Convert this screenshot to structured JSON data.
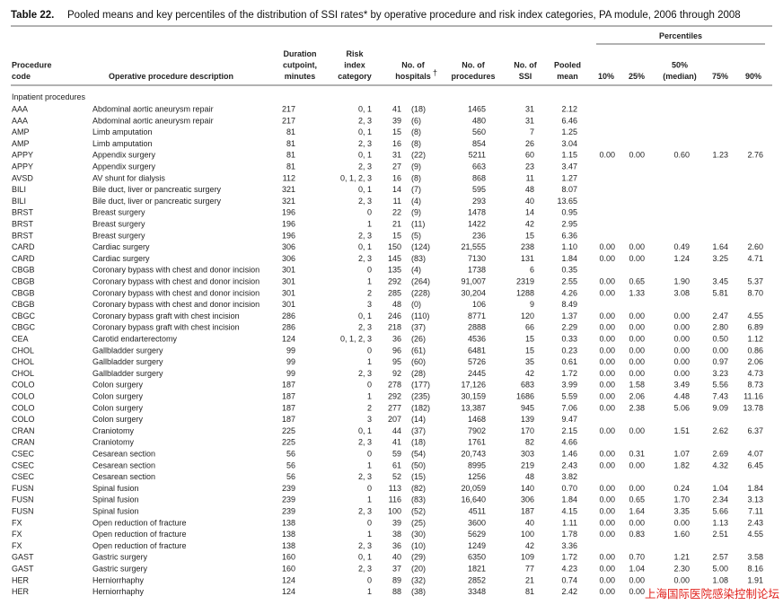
{
  "header": {
    "title_label": "Table 22.",
    "title": "Pooled means and key percentiles of the distribution of SSI rates* by operative procedure and risk index categories, PA module, 2006 through 2008"
  },
  "table": {
    "percentiles_label": "Percentiles",
    "columns": [
      {
        "lines": [
          "Procedure",
          "code"
        ]
      },
      {
        "lines": [
          "Operative procedure description"
        ]
      },
      {
        "lines": [
          "Duration",
          "cutpoint,",
          "minutes"
        ]
      },
      {
        "lines": [
          "Risk",
          "index",
          "category"
        ]
      },
      {
        "lines": [
          "No. of",
          "hospitals"
        ],
        "note_mark": "†"
      },
      {
        "lines": [
          "No. of",
          "procedures"
        ]
      },
      {
        "lines": [
          "No. of",
          "SSI"
        ]
      },
      {
        "lines": [
          "Pooled",
          "mean"
        ]
      },
      {
        "lines": [
          "10%"
        ]
      },
      {
        "lines": [
          "25%"
        ]
      },
      {
        "lines": [
          "50%",
          "(median)"
        ]
      },
      {
        "lines": [
          "75%"
        ]
      },
      {
        "lines": [
          "90%"
        ]
      }
    ],
    "section": "Inpatient procedures",
    "rows": [
      [
        "AAA",
        "Abdominal aortic aneurysm repair",
        "217",
        "0, 1",
        "41",
        "(18)",
        "1465",
        "31",
        "2.12"
      ],
      [
        "AAA",
        "Abdominal aortic aneurysm repair",
        "217",
        "2, 3",
        "39",
        "(6)",
        "480",
        "31",
        "6.46"
      ],
      [
        "AMP",
        "Limb amputation",
        "81",
        "0, 1",
        "15",
        "(8)",
        "560",
        "7",
        "1.25"
      ],
      [
        "AMP",
        "Limb amputation",
        "81",
        "2, 3",
        "16",
        "(8)",
        "854",
        "26",
        "3.04"
      ],
      [
        "APPY",
        "Appendix surgery",
        "81",
        "0, 1",
        "31",
        "(22)",
        "5211",
        "60",
        "1.15",
        "0.00",
        "0.00",
        "0.60",
        "1.23",
        "2.76"
      ],
      [
        "APPY",
        "Appendix surgery",
        "81",
        "2, 3",
        "27",
        "(9)",
        "663",
        "23",
        "3.47"
      ],
      [
        "AVSD",
        "AV shunt for dialysis",
        "112",
        "0, 1, 2, 3",
        "16",
        "(8)",
        "868",
        "11",
        "1.27"
      ],
      [
        "BILI",
        "Bile duct, liver or pancreatic surgery",
        "321",
        "0, 1",
        "14",
        "(7)",
        "595",
        "48",
        "8.07"
      ],
      [
        "BILI",
        "Bile duct, liver or pancreatic surgery",
        "321",
        "2, 3",
        "11",
        "(4)",
        "293",
        "40",
        "13.65"
      ],
      [
        "BRST",
        "Breast surgery",
        "196",
        "0",
        "22",
        "(9)",
        "1478",
        "14",
        "0.95"
      ],
      [
        "BRST",
        "Breast surgery",
        "196",
        "1",
        "21",
        "(11)",
        "1422",
        "42",
        "2.95"
      ],
      [
        "BRST",
        "Breast surgery",
        "196",
        "2, 3",
        "15",
        "(5)",
        "236",
        "15",
        "6.36"
      ],
      [
        "CARD",
        "Cardiac surgery",
        "306",
        "0, 1",
        "150",
        "(124)",
        "21,555",
        "238",
        "1.10",
        "0.00",
        "0.00",
        "0.49",
        "1.64",
        "2.60"
      ],
      [
        "CARD",
        "Cardiac surgery",
        "306",
        "2, 3",
        "145",
        "(83)",
        "7130",
        "131",
        "1.84",
        "0.00",
        "0.00",
        "1.24",
        "3.25",
        "4.71"
      ],
      [
        "CBGB",
        "Coronary bypass with chest and donor incision",
        "301",
        "0",
        "135",
        "(4)",
        "1738",
        "6",
        "0.35"
      ],
      [
        "CBGB",
        "Coronary bypass with chest and donor incision",
        "301",
        "1",
        "292",
        "(264)",
        "91,007",
        "2319",
        "2.55",
        "0.00",
        "0.65",
        "1.90",
        "3.45",
        "5.37"
      ],
      [
        "CBGB",
        "Coronary bypass with chest and donor incision",
        "301",
        "2",
        "285",
        "(228)",
        "30,204",
        "1288",
        "4.26",
        "0.00",
        "1.33",
        "3.08",
        "5.81",
        "8.70"
      ],
      [
        "CBGB",
        "Coronary bypass with chest and donor incision",
        "301",
        "3",
        "48",
        "(0)",
        "106",
        "9",
        "8.49"
      ],
      [
        "CBGC",
        "Coronary bypass graft with chest incision",
        "286",
        "0, 1",
        "246",
        "(110)",
        "8771",
        "120",
        "1.37",
        "0.00",
        "0.00",
        "0.00",
        "2.47",
        "4.55"
      ],
      [
        "CBGC",
        "Coronary bypass graft with chest incision",
        "286",
        "2, 3",
        "218",
        "(37)",
        "2888",
        "66",
        "2.29",
        "0.00",
        "0.00",
        "0.00",
        "2.80",
        "6.89"
      ],
      [
        "CEA",
        "Carotid endarterectomy",
        "124",
        "0, 1, 2, 3",
        "36",
        "(26)",
        "4536",
        "15",
        "0.33",
        "0.00",
        "0.00",
        "0.00",
        "0.50",
        "1.12"
      ],
      [
        "CHOL",
        "Gallbladder surgery",
        "99",
        "0",
        "96",
        "(61)",
        "6481",
        "15",
        "0.23",
        "0.00",
        "0.00",
        "0.00",
        "0.00",
        "0.86"
      ],
      [
        "CHOL",
        "Gallbladder surgery",
        "99",
        "1",
        "95",
        "(60)",
        "5726",
        "35",
        "0.61",
        "0.00",
        "0.00",
        "0.00",
        "0.97",
        "2.06"
      ],
      [
        "CHOL",
        "Gallbladder surgery",
        "99",
        "2, 3",
        "92",
        "(28)",
        "2445",
        "42",
        "1.72",
        "0.00",
        "0.00",
        "0.00",
        "3.23",
        "4.73"
      ],
      [
        "COLO",
        "Colon surgery",
        "187",
        "0",
        "278",
        "(177)",
        "17,126",
        "683",
        "3.99",
        "0.00",
        "1.58",
        "3.49",
        "5.56",
        "8.73"
      ],
      [
        "COLO",
        "Colon surgery",
        "187",
        "1",
        "292",
        "(235)",
        "30,159",
        "1686",
        "5.59",
        "0.00",
        "2.06",
        "4.48",
        "7.43",
        "11.16"
      ],
      [
        "COLO",
        "Colon surgery",
        "187",
        "2",
        "277",
        "(182)",
        "13,387",
        "945",
        "7.06",
        "0.00",
        "2.38",
        "5.06",
        "9.09",
        "13.78"
      ],
      [
        "COLO",
        "Colon surgery",
        "187",
        "3",
        "207",
        "(14)",
        "1468",
        "139",
        "9.47"
      ],
      [
        "CRAN",
        "Craniotomy",
        "225",
        "0, 1",
        "44",
        "(37)",
        "7902",
        "170",
        "2.15",
        "0.00",
        "0.00",
        "1.51",
        "2.62",
        "6.37"
      ],
      [
        "CRAN",
        "Craniotomy",
        "225",
        "2, 3",
        "41",
        "(18)",
        "1761",
        "82",
        "4.66"
      ],
      [
        "CSEC",
        "Cesarean section",
        "56",
        "0",
        "59",
        "(54)",
        "20,743",
        "303",
        "1.46",
        "0.00",
        "0.31",
        "1.07",
        "2.69",
        "4.07"
      ],
      [
        "CSEC",
        "Cesarean section",
        "56",
        "1",
        "61",
        "(50)",
        "8995",
        "219",
        "2.43",
        "0.00",
        "0.00",
        "1.82",
        "4.32",
        "6.45"
      ],
      [
        "CSEC",
        "Cesarean section",
        "56",
        "2, 3",
        "52",
        "(15)",
        "1256",
        "48",
        "3.82"
      ],
      [
        "FUSN",
        "Spinal fusion",
        "239",
        "0",
        "113",
        "(82)",
        "20,059",
        "140",
        "0.70",
        "0.00",
        "0.00",
        "0.24",
        "1.04",
        "1.84"
      ],
      [
        "FUSN",
        "Spinal fusion",
        "239",
        "1",
        "116",
        "(83)",
        "16,640",
        "306",
        "1.84",
        "0.00",
        "0.65",
        "1.70",
        "2.34",
        "3.13"
      ],
      [
        "FUSN",
        "Spinal fusion",
        "239",
        "2, 3",
        "100",
        "(52)",
        "4511",
        "187",
        "4.15",
        "0.00",
        "1.64",
        "3.35",
        "5.66",
        "7.11"
      ],
      [
        "FX",
        "Open reduction of fracture",
        "138",
        "0",
        "39",
        "(25)",
        "3600",
        "40",
        "1.11",
        "0.00",
        "0.00",
        "0.00",
        "1.13",
        "2.43"
      ],
      [
        "FX",
        "Open reduction of fracture",
        "138",
        "1",
        "38",
        "(30)",
        "5629",
        "100",
        "1.78",
        "0.00",
        "0.83",
        "1.60",
        "2.51",
        "4.55"
      ],
      [
        "FX",
        "Open reduction of fracture",
        "138",
        "2, 3",
        "36",
        "(10)",
        "1249",
        "42",
        "3.36"
      ],
      [
        "GAST",
        "Gastric surgery",
        "160",
        "0, 1",
        "40",
        "(29)",
        "6350",
        "109",
        "1.72",
        "0.00",
        "0.70",
        "1.21",
        "2.57",
        "3.58"
      ],
      [
        "GAST",
        "Gastric surgery",
        "160",
        "2, 3",
        "37",
        "(20)",
        "1821",
        "77",
        "4.23",
        "0.00",
        "1.04",
        "2.30",
        "5.00",
        "8.16"
      ],
      [
        "HER",
        "Herniorrhaphy",
        "124",
        "0",
        "89",
        "(32)",
        "2852",
        "21",
        "0.74",
        "0.00",
        "0.00",
        "0.00",
        "1.08",
        "1.91"
      ],
      [
        "HER",
        "Herniorrhaphy",
        "124",
        "1",
        "88",
        "(38)",
        "3348",
        "81",
        "2.42",
        "0.00",
        "0.00"
      ]
    ]
  },
  "watermark": "上海国际医院感染控制论坛"
}
